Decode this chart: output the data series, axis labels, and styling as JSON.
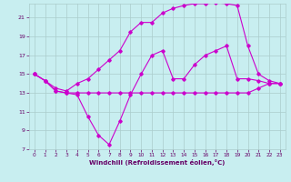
{
  "bg_color": "#c8eef0",
  "grid_color": "#aacccc",
  "line_color": "#cc00cc",
  "xlabel": "Windchill (Refroidissement éolien,°C)",
  "xlim": [
    0,
    23
  ],
  "ylim": [
    7,
    22
  ],
  "yticks": [
    7,
    9,
    11,
    13,
    15,
    17,
    19,
    21
  ],
  "xticks": [
    0,
    1,
    2,
    3,
    4,
    5,
    6,
    7,
    8,
    9,
    10,
    11,
    12,
    13,
    14,
    15,
    16,
    17,
    18,
    19,
    20,
    21,
    22,
    23
  ],
  "line1_x": [
    0,
    1,
    2,
    3,
    4,
    5,
    6,
    7,
    8,
    9,
    10,
    11,
    12,
    13,
    14,
    15,
    16,
    17,
    18,
    19,
    20,
    21,
    22,
    23
  ],
  "line1_y": [
    15.0,
    14.3,
    13.2,
    13.0,
    13.0,
    13.0,
    13.0,
    13.0,
    13.0,
    13.0,
    13.0,
    13.0,
    13.0,
    13.0,
    13.0,
    13.0,
    13.0,
    13.0,
    13.0,
    13.0,
    13.0,
    13.5,
    14.0,
    14.0
  ],
  "line2_x": [
    0,
    1,
    2,
    3,
    4,
    5,
    6,
    7,
    8,
    9,
    10,
    11,
    12,
    13,
    14,
    15,
    16,
    17,
    18,
    19,
    20,
    21,
    22,
    23
  ],
  "line2_y": [
    15.0,
    14.3,
    13.2,
    13.0,
    12.8,
    10.5,
    8.5,
    7.5,
    10.0,
    12.8,
    15.0,
    17.0,
    17.5,
    14.5,
    14.5,
    16.0,
    17.0,
    17.5,
    18.0,
    14.5,
    14.5,
    14.3,
    14.0,
    14.0
  ],
  "line3_x": [
    0,
    1,
    2,
    3,
    4,
    5,
    6,
    7,
    8,
    9,
    10,
    11,
    12,
    13,
    14,
    15,
    16,
    17,
    18,
    19,
    20,
    21,
    22,
    23
  ],
  "line3_y": [
    15.0,
    14.3,
    13.5,
    13.2,
    14.0,
    14.5,
    15.5,
    16.5,
    17.5,
    19.5,
    20.5,
    20.5,
    21.5,
    22.0,
    22.3,
    22.5,
    22.5,
    22.6,
    22.5,
    22.3,
    18.0,
    15.0,
    14.3,
    14.0
  ]
}
